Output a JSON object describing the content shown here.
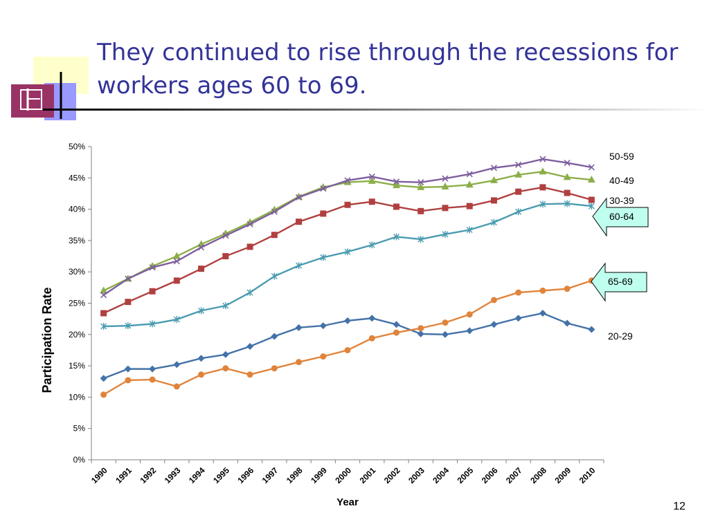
{
  "slide": {
    "title": "They continued to rise through the recessions for workers ages 60 to 69.",
    "page_number": "12"
  },
  "colors": {
    "title": "#333399",
    "logo_yellow": "#FFFFCC",
    "logo_maroon": "#993366",
    "logo_blue": "#9999FF"
  },
  "chart_data": {
    "type": "line",
    "xlabel": "Year",
    "ylabel": "Participation Rate",
    "ylim": [
      0,
      50
    ],
    "yticks": [
      "0%",
      "5%",
      "10%",
      "15%",
      "20%",
      "25%",
      "30%",
      "35%",
      "40%",
      "45%",
      "50%"
    ],
    "grid": false,
    "legend": "none; series labeled at right end of lines",
    "categories": [
      "1990",
      "1991",
      "1992",
      "1993",
      "1994",
      "1995",
      "1996",
      "1997",
      "1998",
      "1999",
      "2000",
      "2001",
      "2002",
      "2003",
      "2004",
      "2005",
      "2006",
      "2007",
      "2008",
      "2009",
      "2010"
    ],
    "series": [
      {
        "name": "20-29",
        "color": "#4472A8",
        "marker": "diamond",
        "values": [
          13.0,
          14.5,
          14.5,
          15.2,
          16.2,
          16.8,
          18.1,
          19.7,
          21.1,
          21.4,
          22.2,
          22.6,
          21.6,
          20.1,
          20.0,
          20.6,
          21.6,
          22.6,
          23.4,
          21.8,
          20.8
        ]
      },
      {
        "name": "65-69",
        "color": "#E0843C",
        "marker": "circle",
        "values": [
          10.4,
          12.7,
          12.8,
          11.7,
          13.6,
          14.6,
          13.6,
          14.6,
          15.6,
          16.5,
          17.5,
          19.4,
          20.3,
          21.0,
          21.9,
          23.2,
          25.5,
          26.7,
          27.0,
          27.3,
          28.6
        ]
      },
      {
        "name": "60-64",
        "color": "#4A9BB0",
        "marker": "star",
        "values": [
          21.3,
          21.4,
          21.7,
          22.4,
          23.8,
          24.6,
          26.7,
          29.3,
          31.0,
          32.3,
          33.2,
          34.3,
          35.6,
          35.2,
          36.0,
          36.7,
          37.9,
          39.6,
          40.8,
          40.9,
          40.5
        ]
      },
      {
        "name": "30-39",
        "color": "#B04040",
        "marker": "square",
        "values": [
          23.4,
          25.2,
          26.9,
          28.6,
          30.5,
          32.5,
          34.0,
          35.9,
          38.0,
          39.3,
          40.7,
          41.2,
          40.4,
          39.7,
          40.2,
          40.5,
          41.4,
          42.8,
          43.5,
          42.6,
          41.5
        ]
      },
      {
        "name": "40-49",
        "color": "#8CAE48",
        "marker": "triangle",
        "values": [
          27.0,
          28.9,
          30.9,
          32.5,
          34.4,
          36.1,
          37.9,
          39.9,
          42.0,
          43.5,
          44.3,
          44.5,
          43.8,
          43.5,
          43.6,
          43.9,
          44.6,
          45.5,
          46.0,
          45.1,
          44.7
        ]
      },
      {
        "name": "50-59",
        "color": "#7D5E9E",
        "marker": "x",
        "values": [
          26.3,
          28.9,
          30.7,
          31.7,
          33.9,
          35.8,
          37.6,
          39.6,
          41.9,
          43.3,
          44.6,
          45.2,
          44.4,
          44.3,
          44.9,
          45.6,
          46.6,
          47.1,
          48.0,
          47.4,
          46.7
        ]
      }
    ],
    "series_labels": [
      {
        "text": "50-59",
        "highlight": false
      },
      {
        "text": "40-49",
        "highlight": false
      },
      {
        "text": "30-39",
        "highlight": false
      },
      {
        "text": "60-64",
        "highlight": true
      },
      {
        "text": "65-69",
        "highlight": true
      },
      {
        "text": "20-29",
        "highlight": false
      }
    ],
    "callout_color": "#BFFFEF"
  }
}
